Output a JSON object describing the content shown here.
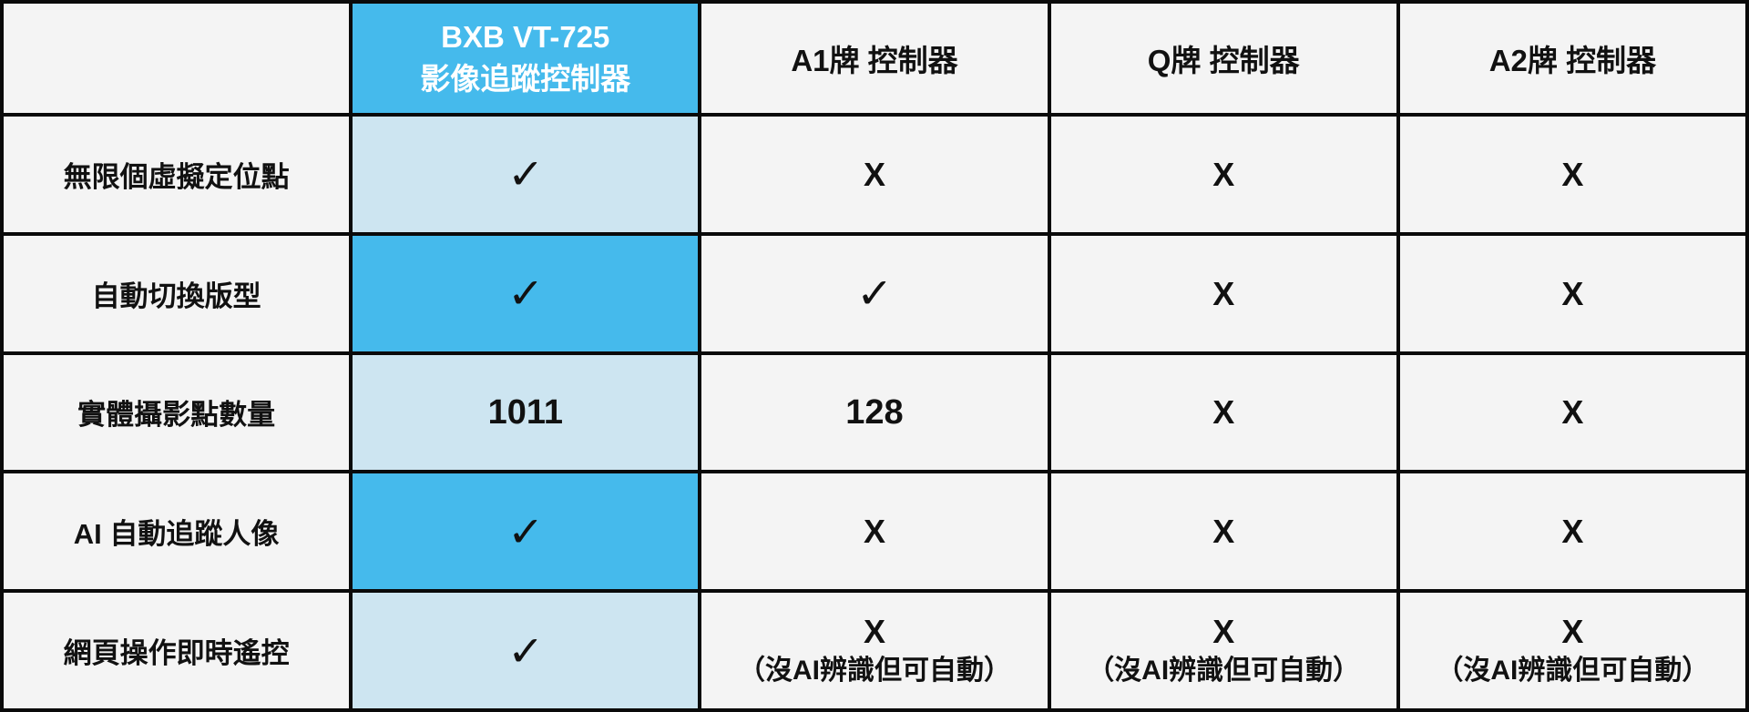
{
  "header": {
    "brand_line1": "BXB VT-725",
    "brand_line2": "影像追蹤控制器",
    "competitors": [
      "A1牌 控制器",
      "Q牌 控制器",
      "A2牌 控制器"
    ]
  },
  "rows": [
    {
      "label": "無限個虛擬定位點",
      "values": [
        "✓",
        "X",
        "X",
        "X"
      ]
    },
    {
      "label": "自動切換版型",
      "values": [
        "✓",
        "✓",
        "X",
        "X"
      ]
    },
    {
      "label": "實體攝影點數量",
      "values": [
        "1011",
        "128",
        "X",
        "X"
      ]
    },
    {
      "label": "AI 自動追蹤人像",
      "values": [
        "✓",
        "X",
        "X",
        "X"
      ]
    },
    {
      "label": "網頁操作即時遙控",
      "values": [
        "✓",
        "X",
        "X",
        "X"
      ],
      "notes": [
        "",
        "（沒AI辨識但可自動）",
        "（沒AI辨識但可自動）",
        "（沒AI辨識但可自動）"
      ]
    }
  ],
  "colors": {
    "brand_blue": "#45BAEC",
    "light_blue": "#CDE5F1",
    "cell_gray": "#F4F4F4",
    "border_black": "#0A0A0A",
    "header_text": "#FFFFFF",
    "body_text": "#111111"
  },
  "chart_data": {
    "type": "table",
    "title": "",
    "columns": [
      "",
      "BXB VT-725 影像追蹤控制器",
      "A1牌 控制器",
      "Q牌 控制器",
      "A2牌 控制器"
    ],
    "rows": [
      [
        "無限個虛擬定位點",
        "✓",
        "X",
        "X",
        "X"
      ],
      [
        "自動切換版型",
        "✓",
        "✓",
        "X",
        "X"
      ],
      [
        "實體攝影點數量",
        "1011",
        "128",
        "X",
        "X"
      ],
      [
        "AI 自動追蹤人像",
        "✓",
        "X",
        "X",
        "X"
      ],
      [
        "網頁操作即時遙控",
        "✓",
        "X（沒AI辨識但可自動）",
        "X（沒AI辨識但可自動）",
        "X（沒AI辨識但可自動）"
      ]
    ],
    "highlight_column": "BXB VT-725 影像追蹤控制器",
    "layout_hints": {
      "grid": true,
      "border_color": "#0A0A0A",
      "highlight_alternating": [
        "#CDE5F1",
        "#45BAEC"
      ]
    }
  }
}
